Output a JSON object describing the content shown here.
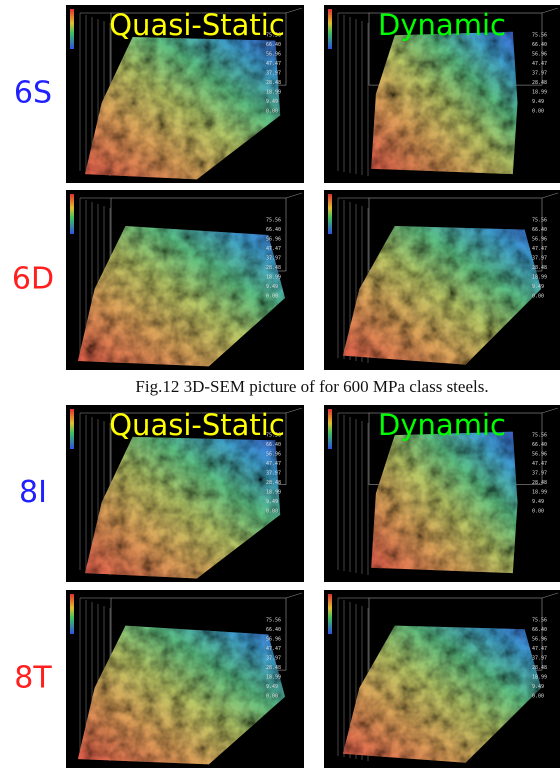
{
  "figure": {
    "columns": [
      "Quasi-Static",
      "Dynamic"
    ],
    "rows": [
      {
        "label": "6S",
        "color": "#1f1fff"
      },
      {
        "label": "6D",
        "color": "#ff1f1f"
      },
      {
        "label": "8I",
        "color": "#1f1fff"
      },
      {
        "label": "8T",
        "color": "#ff1f1f"
      }
    ],
    "caption": "Fig.12    3D-SEM picture of for 600 MPa class steels.",
    "scale_labels": [
      "75.56",
      "66.40",
      "56.96",
      "47.47",
      "37.97",
      "28.48",
      "18.99",
      "9.49",
      "0.00"
    ]
  }
}
